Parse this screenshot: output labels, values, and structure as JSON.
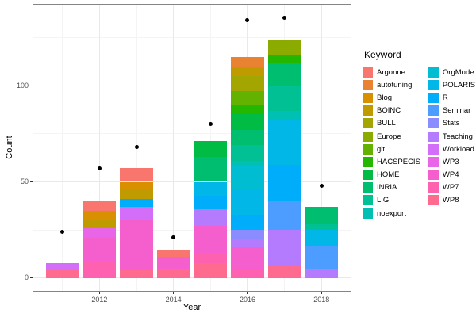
{
  "legend": {
    "title": "Keyword",
    "columns": [
      [
        "Argonne",
        "autotuning",
        "Blog",
        "BOINC",
        "BULL",
        "Europe",
        "git",
        "HACSPECIS",
        "HOME",
        "INRIA",
        "LIG",
        "noexport"
      ],
      [
        "OrgMode",
        "POLARIS",
        "R",
        "Seminar",
        "Stats",
        "Teaching",
        "Workload",
        "WP3",
        "WP4",
        "WP7",
        "WP8"
      ]
    ]
  },
  "colors": {
    "Argonne": "#F8766D",
    "autotuning": "#EA8331",
    "Blog": "#D89000",
    "BOINC": "#C09B00",
    "BULL": "#A3A500",
    "Europe": "#8CAB00",
    "git": "#64B200",
    "HACSPECIS": "#24B700",
    "HOME": "#00BB44",
    "INRIA": "#00BE70",
    "LIG": "#00C094",
    "noexport": "#00C0B4",
    "OrgMode": "#00BDD1",
    "POLARIS": "#00B7E8",
    "R": "#00ADFA",
    "Seminar": "#4C9DFF",
    "Stats": "#8A8CFF",
    "Teaching": "#B47BFF",
    "Workload": "#D36EF9",
    "WP3": "#E865E7",
    "WP4": "#F55FCD",
    "WP7": "#FD61AF",
    "WP8": "#FF6A8F"
  },
  "chart_data": {
    "type": "bar",
    "stacked": true,
    "title": "",
    "xlabel": "Year",
    "ylabel": "Count",
    "x_ticks": [
      2012,
      2014,
      2016,
      2018
    ],
    "x_minor_ticks": [
      2011,
      2013,
      2015,
      2017
    ],
    "y_ticks": [
      0,
      50,
      100
    ],
    "y_minor_ticks": [
      25,
      75,
      125
    ],
    "x_domain": [
      2010.19,
      2018.81
    ],
    "y_domain": [
      -7,
      142.4
    ],
    "bar_width_years": 0.9,
    "grid": true,
    "legend_position": "right",
    "legend_title": "Keyword",
    "bars": [
      {
        "year": 2011,
        "total": 8,
        "segments": [
          {
            "keyword": "WP8",
            "value": 4
          },
          {
            "keyword": "Workload",
            "value": 4
          }
        ]
      },
      {
        "year": 2012,
        "total": 40,
        "segments": [
          {
            "keyword": "WP7",
            "value": 9
          },
          {
            "keyword": "WP4",
            "value": 12
          },
          {
            "keyword": "WP3",
            "value": 5
          },
          {
            "keyword": "BOINC",
            "value": 4
          },
          {
            "keyword": "Blog",
            "value": 5
          },
          {
            "keyword": "Argonne",
            "value": 5
          }
        ]
      },
      {
        "year": 2013,
        "total": 57,
        "segments": [
          {
            "keyword": "WP8",
            "value": 4
          },
          {
            "keyword": "WP4",
            "value": 26
          },
          {
            "keyword": "Workload",
            "value": 7
          },
          {
            "keyword": "R",
            "value": 4
          },
          {
            "keyword": "BOINC",
            "value": 5
          },
          {
            "keyword": "Blog",
            "value": 4
          },
          {
            "keyword": "Argonne",
            "value": 7
          }
        ]
      },
      {
        "year": 2014,
        "total": 15,
        "segments": [
          {
            "keyword": "WP8",
            "value": 5
          },
          {
            "keyword": "WP4",
            "value": 6
          },
          {
            "keyword": "Argonne",
            "value": 4
          }
        ]
      },
      {
        "year": 2015,
        "total": 71,
        "segments": [
          {
            "keyword": "WP8",
            "value": 8
          },
          {
            "keyword": "WP7",
            "value": 5
          },
          {
            "keyword": "WP4",
            "value": 14
          },
          {
            "keyword": "Teaching",
            "value": 9
          },
          {
            "keyword": "R",
            "value": 7
          },
          {
            "keyword": "POLARIS",
            "value": 7
          },
          {
            "keyword": "INRIA",
            "value": 13
          },
          {
            "keyword": "HOME",
            "value": 8
          }
        ]
      },
      {
        "year": 2016,
        "total": 115,
        "segments": [
          {
            "keyword": "WP7",
            "value": 4
          },
          {
            "keyword": "WP4",
            "value": 12
          },
          {
            "keyword": "Teaching",
            "value": 4
          },
          {
            "keyword": "Stats",
            "value": 5
          },
          {
            "keyword": "R",
            "value": 8
          },
          {
            "keyword": "POLARIS",
            "value": 13
          },
          {
            "keyword": "OrgMode",
            "value": 12
          },
          {
            "keyword": "noexport",
            "value": 3
          },
          {
            "keyword": "LIG",
            "value": 8
          },
          {
            "keyword": "INRIA",
            "value": 8
          },
          {
            "keyword": "HOME",
            "value": 9
          },
          {
            "keyword": "HACSPECIS",
            "value": 4
          },
          {
            "keyword": "git",
            "value": 7
          },
          {
            "keyword": "BULL",
            "value": 8
          },
          {
            "keyword": "BOINC",
            "value": 5
          },
          {
            "keyword": "autotuning",
            "value": 5
          }
        ]
      },
      {
        "year": 2017,
        "total": 124,
        "segments": [
          {
            "keyword": "WP8",
            "value": 6
          },
          {
            "keyword": "Teaching",
            "value": 19
          },
          {
            "keyword": "Seminar",
            "value": 15
          },
          {
            "keyword": "R",
            "value": 19
          },
          {
            "keyword": "POLARIS",
            "value": 23
          },
          {
            "keyword": "noexport",
            "value": 5
          },
          {
            "keyword": "LIG",
            "value": 13
          },
          {
            "keyword": "INRIA",
            "value": 12
          },
          {
            "keyword": "HACSPECIS",
            "value": 4
          },
          {
            "keyword": "Europe",
            "value": 8
          }
        ]
      },
      {
        "year": 2018,
        "total": 37,
        "segments": [
          {
            "keyword": "Teaching",
            "value": 5
          },
          {
            "keyword": "Seminar",
            "value": 12
          },
          {
            "keyword": "POLARIS",
            "value": 8
          },
          {
            "keyword": "LIG",
            "value": 3
          },
          {
            "keyword": "INRIA",
            "value": 9
          }
        ]
      }
    ],
    "points": [
      {
        "year": 2011,
        "value": 24
      },
      {
        "year": 2012,
        "value": 57
      },
      {
        "year": 2013,
        "value": 68
      },
      {
        "year": 2014,
        "value": 21
      },
      {
        "year": 2015,
        "value": 80
      },
      {
        "year": 2016,
        "value": 134
      },
      {
        "year": 2017,
        "value": 135
      },
      {
        "year": 2018,
        "value": 48
      }
    ]
  }
}
